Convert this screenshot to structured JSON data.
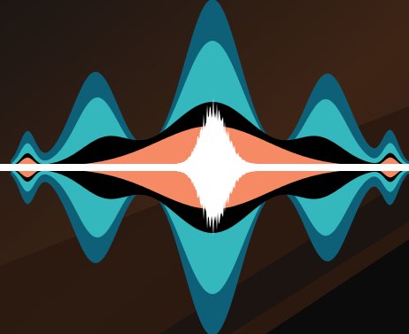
{
  "artwork": {
    "kind": "sound-wave-graphic",
    "icon": "audio-waveform-icon",
    "colors": {
      "background_dark": "#1c1613",
      "background_warm": "#3e2415",
      "background_mid": "#2c1a10",
      "shadow": "#0b0b0b",
      "outer_band": "#0e6078",
      "middle_band": "#34b8bd",
      "inner_band": "#000000",
      "core_band": "#f58a64",
      "spike": "#ffffff",
      "baseline": "#ffffff"
    }
  }
}
